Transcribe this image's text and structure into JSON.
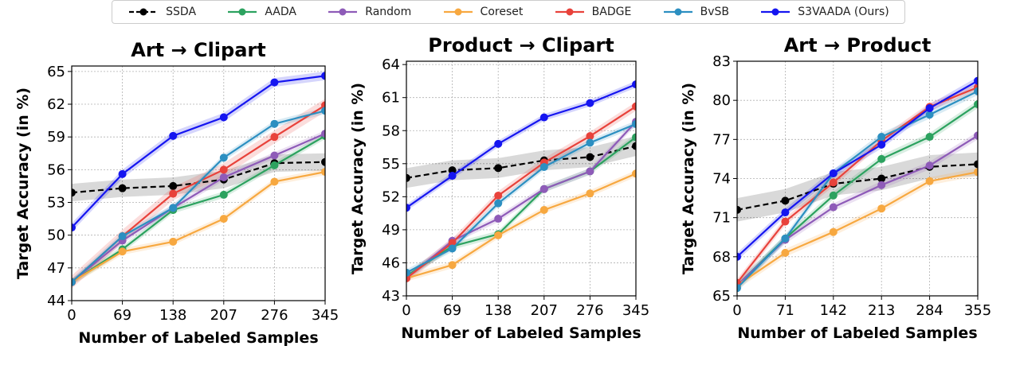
{
  "legend": {
    "items": [
      {
        "name": "SSDA",
        "color": "#000000",
        "dashed": true
      },
      {
        "name": "AADA",
        "color": "#2ca25f",
        "dashed": false
      },
      {
        "name": "Random",
        "color": "#8e5bb8",
        "dashed": false
      },
      {
        "name": "Coreset",
        "color": "#f7a840",
        "dashed": false
      },
      {
        "name": "BADGE",
        "color": "#e8423b",
        "dashed": false
      },
      {
        "name": "BvSB",
        "color": "#2c8fc1",
        "dashed": false
      },
      {
        "name": "S3VAADA (Ours)",
        "color": "#1515f0",
        "dashed": false
      }
    ]
  },
  "chart_data": [
    {
      "type": "line",
      "title": "Art → Clipart",
      "xlabel": "Number of Labeled Samples",
      "ylabel": "Target Accuracy (in %)",
      "x": [
        0,
        69,
        138,
        207,
        276,
        345
      ],
      "xticks": [
        "0",
        "69",
        "138",
        "207",
        "276",
        "345"
      ],
      "yticks": [
        44,
        47,
        50,
        53,
        56,
        59,
        62,
        65
      ],
      "ylim": [
        44,
        65.5
      ],
      "grid": true,
      "series": [
        {
          "name": "SSDA",
          "values": [
            53.9,
            54.3,
            54.5,
            55.1,
            56.6,
            56.7
          ],
          "band": 0.8
        },
        {
          "name": "AADA",
          "values": [
            45.7,
            48.7,
            52.3,
            53.7,
            56.4,
            59.1
          ],
          "band": 0.3
        },
        {
          "name": "Random",
          "values": [
            45.7,
            49.5,
            52.5,
            55.3,
            57.3,
            59.3
          ],
          "band": 0.3
        },
        {
          "name": "Coreset",
          "values": [
            45.7,
            48.5,
            49.4,
            51.5,
            54.9,
            55.8
          ],
          "band": 0.3
        },
        {
          "name": "BADGE",
          "values": [
            45.7,
            49.9,
            53.8,
            56.0,
            59.0,
            61.9
          ],
          "band": 0.6
        },
        {
          "name": "BvSB",
          "values": [
            45.7,
            49.9,
            52.5,
            57.1,
            60.2,
            61.4
          ],
          "band": 0.3
        },
        {
          "name": "S3VAADA (Ours)",
          "values": [
            50.7,
            55.6,
            59.1,
            60.8,
            64.0,
            64.6
          ],
          "band": 0.4
        }
      ]
    },
    {
      "type": "line",
      "title": "Product → Clipart",
      "xlabel": "Number of Labeled Samples",
      "ylabel": "Target Accuracy (in %)",
      "x": [
        0,
        69,
        138,
        207,
        276,
        345
      ],
      "xticks": [
        "0",
        "69",
        "138",
        "207",
        "276",
        "345"
      ],
      "yticks": [
        43,
        46,
        49,
        52,
        55,
        58,
        61,
        64
      ],
      "ylim": [
        43,
        64.3
      ],
      "grid": true,
      "series": [
        {
          "name": "SSDA",
          "values": [
            53.7,
            54.4,
            54.6,
            55.3,
            55.6,
            56.6
          ],
          "band": 0.9
        },
        {
          "name": "AADA",
          "values": [
            44.8,
            47.5,
            48.6,
            52.7,
            54.3,
            57.4
          ],
          "band": 0.3
        },
        {
          "name": "Random",
          "values": [
            44.6,
            48.0,
            50.0,
            52.7,
            54.3,
            58.8
          ],
          "band": 0.3
        },
        {
          "name": "Coreset",
          "values": [
            44.6,
            45.8,
            48.5,
            50.8,
            52.3,
            54.1
          ],
          "band": 0.3
        },
        {
          "name": "BADGE",
          "values": [
            44.6,
            47.8,
            52.1,
            55.1,
            57.5,
            60.2
          ],
          "band": 0.4
        },
        {
          "name": "BvSB",
          "values": [
            45.1,
            47.3,
            51.4,
            54.7,
            56.9,
            58.6
          ],
          "band": 0.3
        },
        {
          "name": "S3VAADA (Ours)",
          "values": [
            51.0,
            53.9,
            56.8,
            59.2,
            60.5,
            62.2
          ],
          "band": 0.3
        }
      ]
    },
    {
      "type": "line",
      "title": "Art → Product",
      "xlabel": "Number of Labeled Samples",
      "ylabel": "Target Accuracy (in %)",
      "x": [
        0,
        71,
        142,
        213,
        284,
        355
      ],
      "xticks": [
        "0",
        "71",
        "142",
        "213",
        "284",
        "355"
      ],
      "yticks": [
        65,
        68,
        71,
        74,
        77,
        80,
        83
      ],
      "ylim": [
        65,
        83
      ],
      "grid": true,
      "series": [
        {
          "name": "SSDA",
          "values": [
            71.6,
            72.3,
            73.6,
            74.0,
            74.9,
            75.1
          ],
          "band": 0.9
        },
        {
          "name": "AADA",
          "values": [
            65.8,
            69.4,
            72.7,
            75.5,
            77.2,
            79.7
          ],
          "band": 0.3
        },
        {
          "name": "Random",
          "values": [
            65.8,
            69.3,
            71.8,
            73.5,
            75.0,
            77.3
          ],
          "band": 0.3
        },
        {
          "name": "Coreset",
          "values": [
            65.8,
            68.3,
            69.9,
            71.7,
            73.8,
            74.5
          ],
          "band": 0.3
        },
        {
          "name": "BADGE",
          "values": [
            66.0,
            70.7,
            73.7,
            76.9,
            79.5,
            81.0
          ],
          "band": 0.3
        },
        {
          "name": "BvSB",
          "values": [
            65.6,
            69.4,
            74.4,
            77.2,
            78.9,
            80.7
          ],
          "band": 0.3
        },
        {
          "name": "S3VAADA (Ours)",
          "values": [
            68.0,
            71.4,
            74.4,
            76.6,
            79.4,
            81.5
          ],
          "band": 0.3
        }
      ]
    }
  ]
}
